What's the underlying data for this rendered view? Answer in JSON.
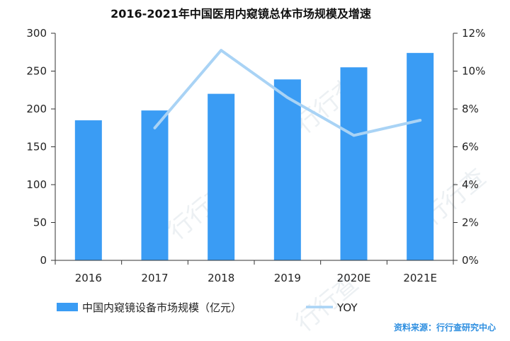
{
  "chart_data": {
    "type": "bar",
    "title": "2016-2021年中国医用内窥镜总体市场规模及增速",
    "categories": [
      "2016",
      "2017",
      "2018",
      "2019",
      "2020E",
      "2021E"
    ],
    "series": [
      {
        "name": "中国内窥镜设备市场规模（亿元）",
        "type": "bar",
        "axis": "left",
        "color": "#3a9cf4",
        "values": [
          185,
          198,
          220,
          239,
          255,
          274
        ]
      },
      {
        "name": "YOY",
        "type": "line",
        "axis": "right",
        "color": "#a9d3f5",
        "values": [
          null,
          0.07,
          0.111,
          0.086,
          0.066,
          0.074
        ]
      }
    ],
    "y_left": {
      "ylim": [
        0,
        300
      ],
      "ticks": [
        "0",
        "50",
        "100",
        "150",
        "200",
        "250",
        "300"
      ]
    },
    "y_right": {
      "ylim": [
        0,
        0.12
      ],
      "ticks": [
        "0%",
        "2%",
        "4%",
        "6%",
        "8%",
        "10%",
        "12%"
      ]
    },
    "grid": false,
    "legend_position": "bottom-left"
  },
  "source": "资料来源：行行查研究中心",
  "watermark": "行行查"
}
